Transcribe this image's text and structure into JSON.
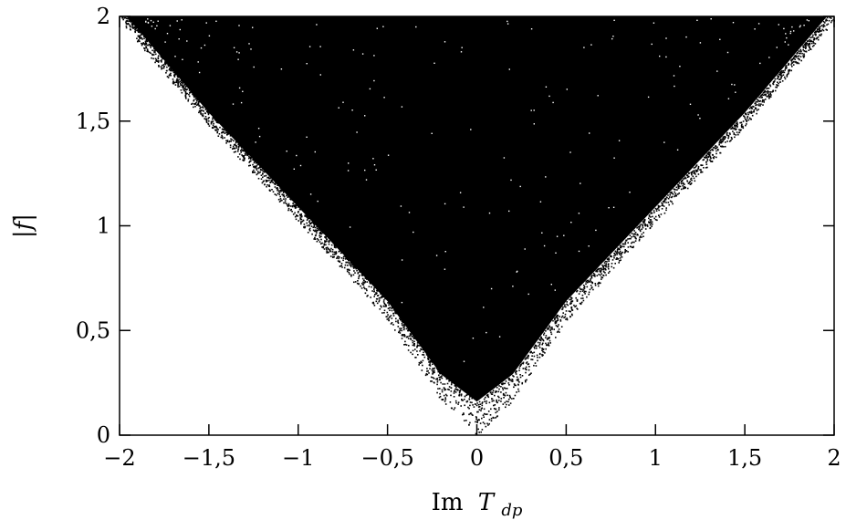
{
  "chart_data": {
    "type": "scatter",
    "title": "",
    "xlabel_main": "Im",
    "xlabel_var": "T",
    "xlabel_sub": "dp",
    "ylabel": "|f|",
    "xlim": [
      -2,
      2
    ],
    "ylim": [
      0,
      2
    ],
    "x_ticks": [
      -2,
      -1.5,
      -1,
      -0.5,
      0,
      0.5,
      1,
      1.5,
      2
    ],
    "x_tick_labels": [
      "−2",
      "−1,5",
      "−1",
      "−0,5",
      "0",
      "0,5",
      "1",
      "1,5",
      "2"
    ],
    "y_ticks": [
      0,
      0.5,
      1,
      1.5,
      2
    ],
    "y_tick_labels": [
      "0",
      "0,5",
      "1",
      "1,5",
      "2"
    ],
    "grid": false,
    "legend": "none",
    "point_color": "#000000",
    "region": {
      "description_values": "points densely fill the region where |f| >= |Im T_dp| (V-shaped), minimum |f| near 0.1 at Im T_dp = 0",
      "lower_boundary": [
        {
          "x": -2.0,
          "y": 2.0
        },
        {
          "x": -1.5,
          "y": 1.5
        },
        {
          "x": -1.0,
          "y": 1.05
        },
        {
          "x": -0.5,
          "y": 0.6
        },
        {
          "x": -0.2,
          "y": 0.25
        },
        {
          "x": 0.0,
          "y": 0.12
        },
        {
          "x": 0.2,
          "y": 0.25
        },
        {
          "x": 0.5,
          "y": 0.6
        },
        {
          "x": 1.0,
          "y": 1.05
        },
        {
          "x": 1.5,
          "y": 1.5
        },
        {
          "x": 2.0,
          "y": 2.0
        }
      ],
      "upper_y": 2.0
    }
  }
}
